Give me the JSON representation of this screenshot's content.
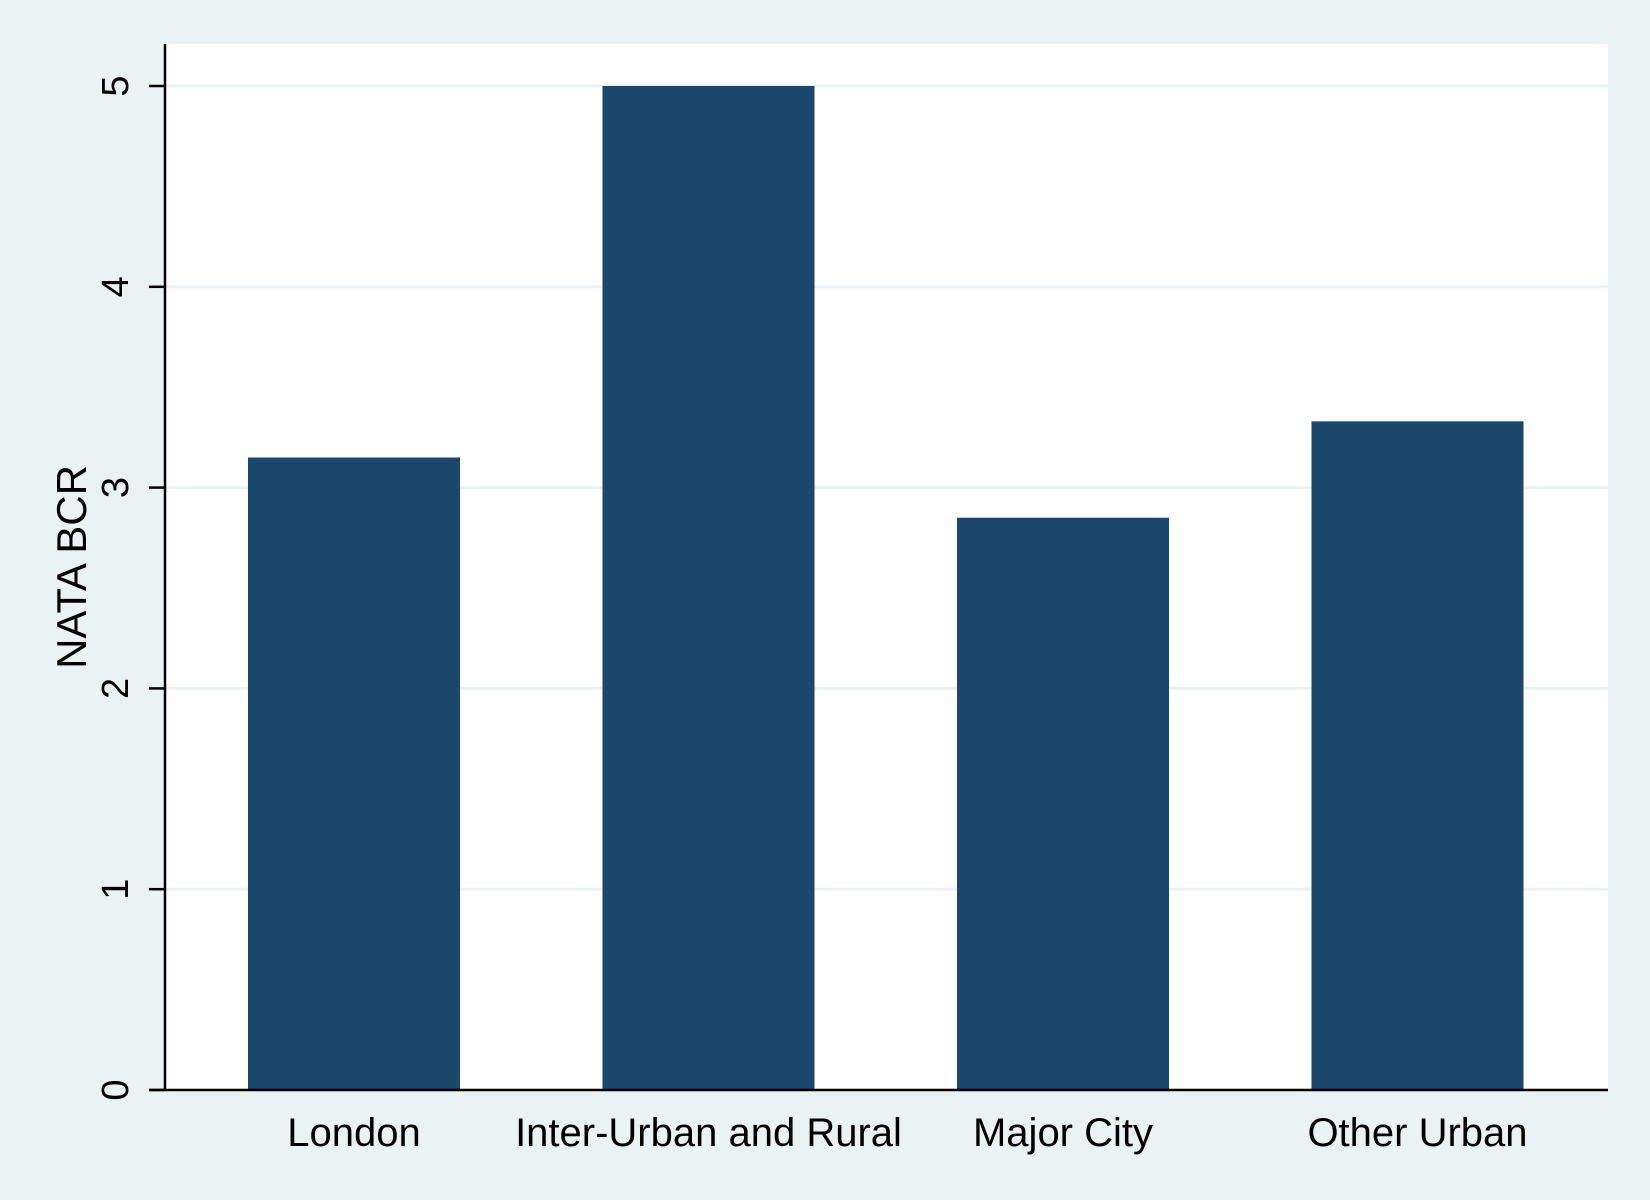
{
  "chart_data": {
    "type": "bar",
    "categories": [
      "London",
      "Inter-Urban and Rural",
      "Major City",
      "Other Urban"
    ],
    "values": [
      3.15,
      5.0,
      2.85,
      3.33
    ],
    "title": "",
    "xlabel": "",
    "ylabel": "NATA BCR",
    "ylim": [
      0,
      5.2
    ],
    "yticks": [
      "0",
      "1",
      "2",
      "3",
      "4",
      "5"
    ],
    "grid": true,
    "legend": "none",
    "colors": {
      "bar": "#1c476d",
      "plot_background": "#ffffff",
      "outer_background": "#eaf2f3",
      "gridline": "#eaf2f3",
      "axis": "#000000"
    }
  }
}
